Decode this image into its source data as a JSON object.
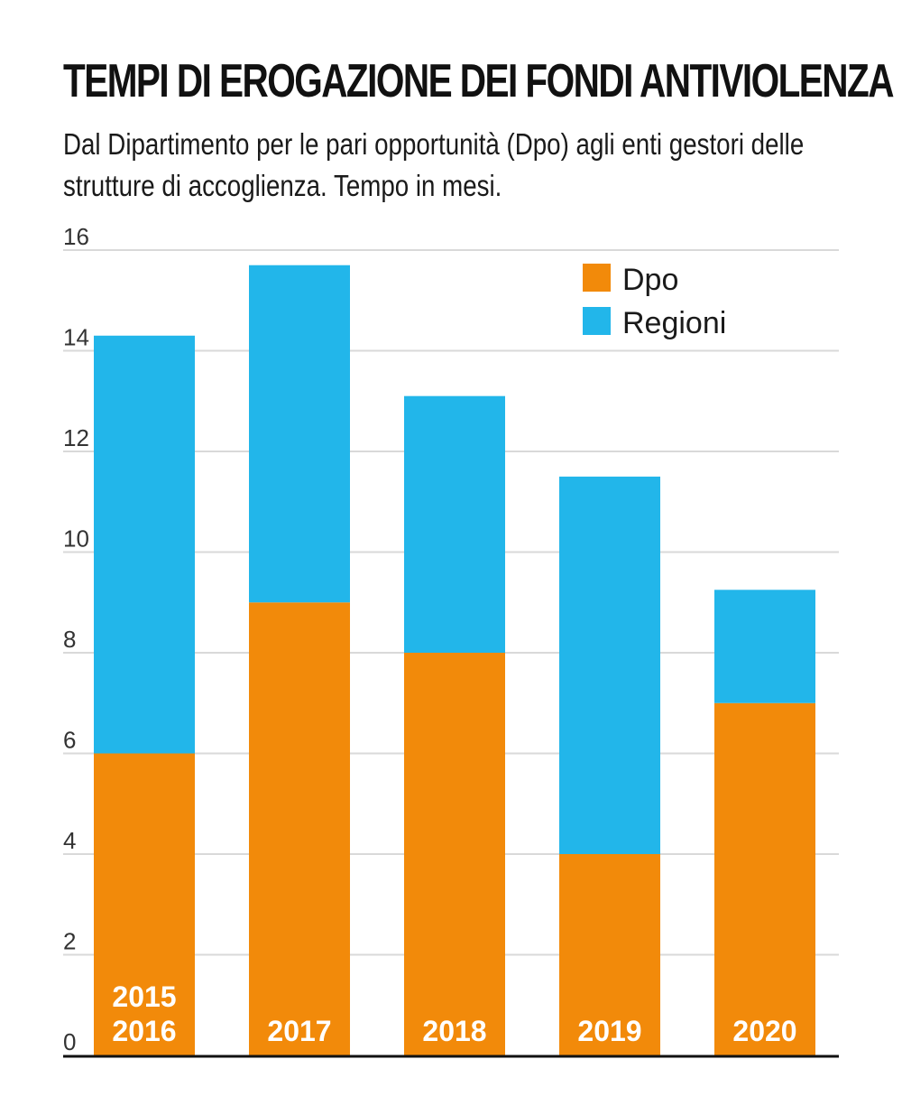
{
  "chart_data": {
    "type": "bar",
    "stacked": true,
    "title": "TEMPI DI EROGAZIONE DEI FONDI ANTIVIOLENZA",
    "subtitle": "Dal Dipartimento per le pari opportunità (Dpo) agli enti gestori delle strutture di accoglienza. Tempo in mesi.",
    "xlabel": "",
    "ylabel": "",
    "categories": [
      [
        "2015",
        "2016"
      ],
      [
        "2017"
      ],
      [
        "2018"
      ],
      [
        "2019"
      ],
      [
        "2020"
      ]
    ],
    "series": [
      {
        "name": "Dpo",
        "color": "#f28a0a",
        "values": [
          6,
          9,
          8,
          4,
          7
        ]
      },
      {
        "name": "Regioni",
        "color": "#22b6ea",
        "values": [
          8.3,
          6.7,
          5.1,
          7.5,
          2.25
        ]
      }
    ],
    "ylim": [
      0,
      16
    ],
    "yticks": [
      "0",
      "2",
      "4",
      "6",
      "8",
      "10",
      "12",
      "14",
      "16"
    ],
    "grid": true,
    "legend_position": "top-right"
  }
}
